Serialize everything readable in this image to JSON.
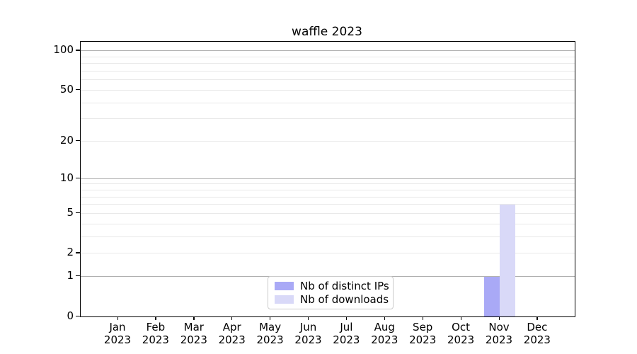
{
  "chart_data": {
    "type": "bar",
    "title": "waffle 2023",
    "x": [
      "Jan",
      "Feb",
      "Mar",
      "Apr",
      "May",
      "Jun",
      "Jul",
      "Aug",
      "Sep",
      "Oct",
      "Nov",
      "Dec"
    ],
    "x_year": "2023",
    "series": [
      {
        "name": "Nb of distinct IPs",
        "color": "#a9a9f6",
        "values": [
          0,
          0,
          0,
          0,
          0,
          0,
          0,
          0,
          0,
          0,
          1,
          0
        ]
      },
      {
        "name": "Nb of downloads",
        "color": "#d9d9f8",
        "values": [
          0,
          0,
          0,
          0,
          0,
          0,
          0,
          0,
          0,
          0,
          6,
          0
        ]
      }
    ],
    "y_scale": "log1p",
    "y_ticks": [
      0,
      1,
      2,
      5,
      10,
      20,
      50,
      100
    ],
    "y_major_gridlines": [
      1,
      10,
      100
    ],
    "y_minor_gridlines": [
      2,
      3,
      4,
      5,
      6,
      7,
      8,
      9,
      20,
      30,
      40,
      50,
      60,
      70,
      80,
      90
    ],
    "ylim": [
      0,
      117
    ],
    "grid": true,
    "legend_position": "lower center",
    "colors": {
      "major_grid": "#b0b0b0",
      "minor_grid": "#e9e9e9",
      "axis": "#000000",
      "background": "#ffffff"
    }
  }
}
